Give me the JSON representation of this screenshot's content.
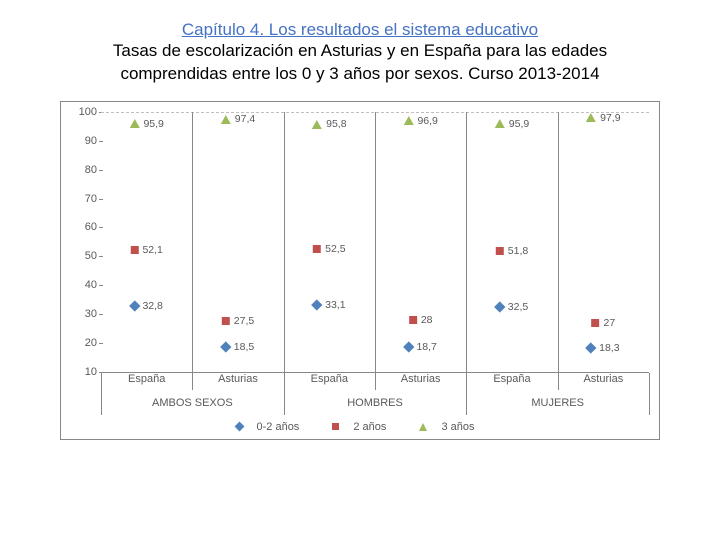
{
  "heading": {
    "chapter": "Capítulo 4. Los resultados el sistema educativo",
    "subtitle_l1": "Tasas de escolarización en Asturias y en España para las edades",
    "subtitle_l2": "comprendidas entre los 0 y 3 años por sexos. Curso 2013-2014"
  },
  "chart": {
    "type": "scatter",
    "ylim": [
      10,
      100
    ],
    "ytick_step": 10,
    "background_color": "#ffffff",
    "grid_color": "#bfbfbf",
    "border_color": "#888888",
    "tick_color": "#595959",
    "font_size": 11,
    "categories": [
      "España",
      "Asturias",
      "España",
      "Asturias",
      "España",
      "Asturias"
    ],
    "groups": [
      "AMBOS SEXOS",
      "HOMBRES",
      "MUJERES"
    ],
    "series": [
      {
        "name": "0-2 años",
        "marker": "diamond",
        "color": "#4f81bd",
        "values": [
          32.8,
          18.5,
          33.1,
          18.7,
          32.5,
          18.3
        ]
      },
      {
        "name": "2 años",
        "marker": "square",
        "color": "#c0504d",
        "values": [
          52.1,
          27.5,
          52.5,
          28,
          51.8,
          27
        ]
      },
      {
        "name": "3 años",
        "marker": "triangle",
        "color": "#9bbb59",
        "values": [
          95.9,
          97.4,
          95.8,
          96.9,
          95.9,
          97.9
        ]
      }
    ],
    "legend": {
      "s0": "0-2 años",
      "s1": "2 años",
      "s2": "3 años"
    }
  }
}
